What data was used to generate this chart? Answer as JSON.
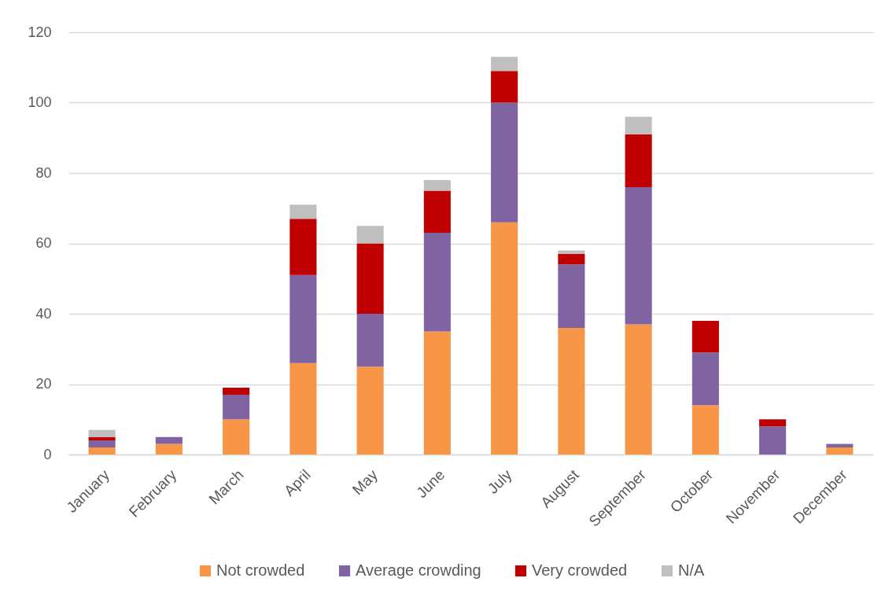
{
  "chart_data": {
    "type": "bar",
    "stacked": true,
    "categories": [
      "January",
      "February",
      "March",
      "April",
      "May",
      "June",
      "July",
      "August",
      "September",
      "October",
      "November",
      "December"
    ],
    "series": [
      {
        "name": "Not crowded",
        "color": "#f79646",
        "values": [
          2,
          3,
          10,
          26,
          25,
          35,
          66,
          36,
          37,
          14,
          null,
          2
        ]
      },
      {
        "name": "Average crowding",
        "color": "#8064a2",
        "values": [
          2,
          2,
          7,
          25,
          15,
          28,
          34,
          18,
          39,
          15,
          8,
          1
        ]
      },
      {
        "name": "Very crowded",
        "color": "#c00000",
        "values": [
          1,
          null,
          2,
          16,
          20,
          12,
          9,
          3,
          15,
          9,
          2,
          null
        ]
      },
      {
        "name": "N/A",
        "color": "#bfbfbf",
        "values": [
          2,
          null,
          null,
          4,
          5,
          3,
          4,
          1,
          5,
          null,
          null,
          null
        ]
      }
    ],
    "ylim": [
      0,
      120
    ],
    "yticks": [
      0,
      20,
      40,
      60,
      80,
      100,
      120
    ],
    "grid": "y",
    "legend": "bottom"
  }
}
